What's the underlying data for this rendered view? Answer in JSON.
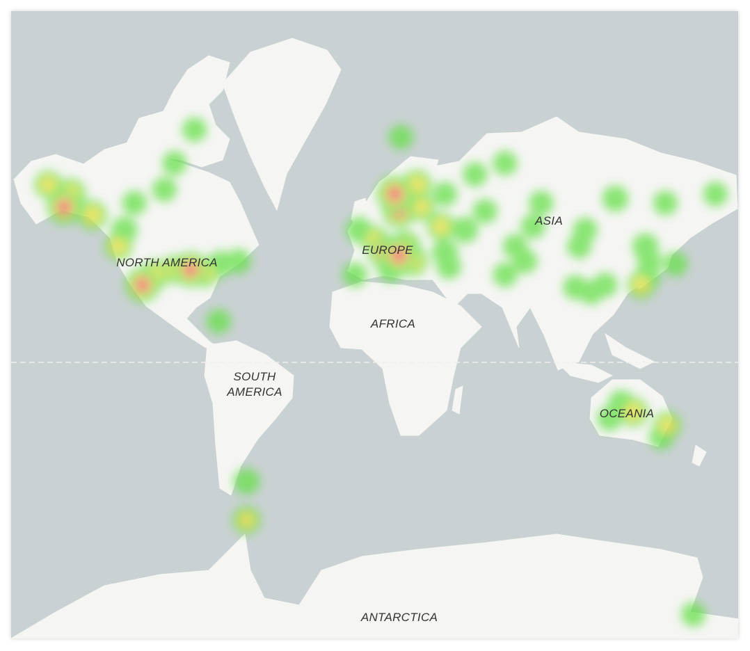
{
  "map": {
    "projection": "mercator",
    "colors": {
      "ocean": "#c9d1d2",
      "land": "#f5f5f3",
      "border": "#555555",
      "heat_low": "#66e04a",
      "heat_mid": "#e8e040",
      "heat_high": "#f06060"
    },
    "labels": {
      "north_america": "NORTH AMERICA",
      "south_america": "SOUTH AMERICA",
      "europe": "EUROPE",
      "africa": "AFRICA",
      "asia": "ASIA",
      "oceania": "OCEANIA",
      "antarctica": "ANTARCTICA"
    },
    "heat_points": [
      {
        "lat": 61,
        "lon": -150,
        "w": 0.9
      },
      {
        "lat": 64,
        "lon": -147,
        "w": 0.7
      },
      {
        "lat": 59,
        "lon": -136,
        "w": 0.6
      },
      {
        "lat": 66,
        "lon": -158,
        "w": 0.5
      },
      {
        "lat": 50,
        "lon": -123,
        "w": 0.5
      },
      {
        "lat": 55,
        "lon": -120,
        "w": 0.4
      },
      {
        "lat": 65,
        "lon": -100,
        "w": 0.3
      },
      {
        "lat": 62,
        "lon": -115,
        "w": 0.3
      },
      {
        "lat": 70,
        "lon": -95,
        "w": 0.3
      },
      {
        "lat": 75,
        "lon": -85,
        "w": 0.3
      },
      {
        "lat": 40,
        "lon": -105,
        "w": 0.6
      },
      {
        "lat": 36,
        "lon": -111,
        "w": 0.9
      },
      {
        "lat": 42,
        "lon": -95,
        "w": 0.5
      },
      {
        "lat": 42,
        "lon": -87,
        "w": 0.9
      },
      {
        "lat": 41,
        "lon": -80,
        "w": 0.6
      },
      {
        "lat": 44,
        "lon": -72,
        "w": 0.4
      },
      {
        "lat": 45,
        "lon": -63,
        "w": 0.3
      },
      {
        "lat": 20,
        "lon": -73,
        "w": 0.3
      },
      {
        "lat": 74,
        "lon": 18,
        "w": 0.3
      },
      {
        "lat": 64,
        "lon": 15,
        "w": 1.0
      },
      {
        "lat": 60,
        "lon": 17,
        "w": 0.8
      },
      {
        "lat": 66,
        "lon": 26,
        "w": 0.6
      },
      {
        "lat": 61,
        "lon": 28,
        "w": 0.5
      },
      {
        "lat": 47,
        "lon": 17,
        "w": 1.0
      },
      {
        "lat": 48,
        "lon": 10,
        "w": 0.8
      },
      {
        "lat": 50,
        "lon": 20,
        "w": 0.7
      },
      {
        "lat": 45,
        "lon": 24,
        "w": 0.6
      },
      {
        "lat": 52,
        "lon": 5,
        "w": 0.5
      },
      {
        "lat": 55,
        "lon": -3,
        "w": 0.4
      },
      {
        "lat": 40,
        "lon": -5,
        "w": 0.3
      },
      {
        "lat": 42,
        "lon": 13,
        "w": 0.4
      },
      {
        "lat": 56,
        "lon": 38,
        "w": 0.5
      },
      {
        "lat": 55,
        "lon": 50,
        "w": 0.4
      },
      {
        "lat": 48,
        "lon": 40,
        "w": 0.4
      },
      {
        "lat": 43,
        "lon": 42,
        "w": 0.3
      },
      {
        "lat": 60,
        "lon": 60,
        "w": 0.3
      },
      {
        "lat": 68,
        "lon": 55,
        "w": 0.3
      },
      {
        "lat": 64,
        "lon": 40,
        "w": 0.3
      },
      {
        "lat": 70,
        "lon": 70,
        "w": 0.3
      },
      {
        "lat": 62,
        "lon": 88,
        "w": 0.3
      },
      {
        "lat": 56,
        "lon": 84,
        "w": 0.3
      },
      {
        "lat": 50,
        "lon": 75,
        "w": 0.3
      },
      {
        "lat": 45,
        "lon": 80,
        "w": 0.3
      },
      {
        "lat": 40,
        "lon": 70,
        "w": 0.3
      },
      {
        "lat": 63,
        "lon": 125,
        "w": 0.4
      },
      {
        "lat": 55,
        "lon": 110,
        "w": 0.3
      },
      {
        "lat": 50,
        "lon": 107,
        "w": 0.3
      },
      {
        "lat": 35,
        "lon": 105,
        "w": 0.3
      },
      {
        "lat": 33,
        "lon": 113,
        "w": 0.3
      },
      {
        "lat": 36,
        "lon": 120,
        "w": 0.3
      },
      {
        "lat": 62,
        "lon": 150,
        "w": 0.3
      },
      {
        "lat": 64,
        "lon": 175,
        "w": 0.3
      },
      {
        "lat": 50,
        "lon": 140,
        "w": 0.4
      },
      {
        "lat": 45,
        "lon": 142,
        "w": 0.3
      },
      {
        "lat": 36,
        "lon": 138,
        "w": 0.5
      },
      {
        "lat": 39,
        "lon": 141,
        "w": 0.4
      },
      {
        "lat": 44,
        "lon": 155,
        "w": 0.3
      },
      {
        "lat": -24,
        "lon": 134,
        "w": 0.6
      },
      {
        "lat": -20,
        "lon": 128,
        "w": 0.4
      },
      {
        "lat": -30,
        "lon": 151,
        "w": 0.5
      },
      {
        "lat": -35,
        "lon": 148,
        "w": 0.3
      },
      {
        "lat": -27,
        "lon": 122,
        "w": 0.3
      },
      {
        "lat": -51,
        "lon": -59,
        "w": 0.4
      },
      {
        "lat": -61.6,
        "lon": -59,
        "w": 0.5
      },
      {
        "lat": -77.3,
        "lon": 164,
        "w": 0.3
      }
    ]
  }
}
